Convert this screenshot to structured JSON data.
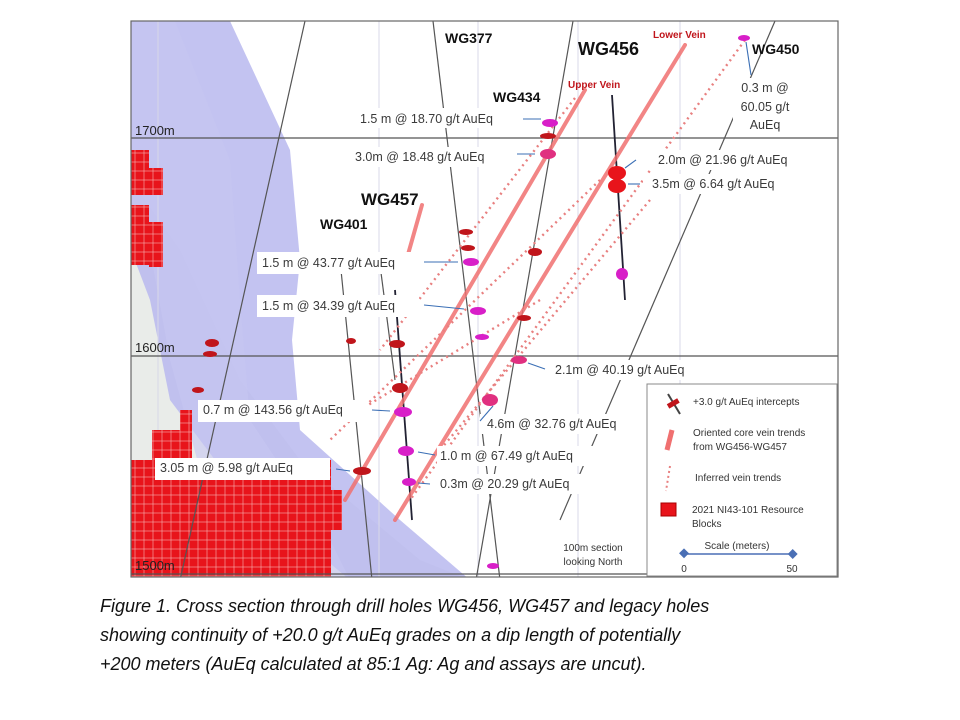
{
  "elevations": [
    "1700m",
    "1600m",
    "1500m"
  ],
  "holes": {
    "wg377": "WG377",
    "wg456": "WG456",
    "wg450": "WG450",
    "wg434": "WG434",
    "wg457": "WG457",
    "wg401": "WG401"
  },
  "veins": {
    "lower": "Lower Vein",
    "upper": "Upper Vein"
  },
  "wg450_intercept": [
    "0.3 m @",
    "60.05 g/t",
    "AuEq"
  ],
  "intercepts": {
    "i1870": "1.5 m @ 18.70 g/t AuEq",
    "i1848": "3.0m @ 18.48 g/t AuEq",
    "i2196": "2.0m @ 21.96 g/t AuEq",
    "i664": "3.5m @ 6.64 g/t AuEq",
    "i4377": "1.5 m @ 43.77 g/t AuEq",
    "i3439": "1.5 m @ 34.39 g/t AuEq",
    "i4019": "2.1m @ 40.19 g/t AuEq",
    "i14356": "0.7 m @ 143.56 g/t AuEq",
    "i3276": "4.6m @ 32.76 g/t AuEq",
    "i6749": "1.0 m @ 67.49 g/t AuEq",
    "i598": "3.05 m @ 5.98 g/t AuEq",
    "i2029": "0.3m @ 20.29 g/t AuEq"
  },
  "section_note": [
    "100m section",
    "looking North"
  ],
  "legend": {
    "intercepts": "+3.0 g/t AuEq intercepts",
    "oriented": [
      "Oriented core vein trends",
      "from WG456-WG457"
    ],
    "inferred": "Inferred vein trends",
    "resource": [
      "2021 NI43-101 Resource",
      "Blocks"
    ],
    "scale_title": "Scale (meters)",
    "scale_min": "0",
    "scale_max": "50"
  },
  "caption": [
    "Figure 1. Cross section through drill holes WG456, WG457 and legacy holes",
    "showing continuity of +20.0 g/t AuEq grades on a dip length of potentially",
    "+200 meters (AuEq calculated at 85:1 Ag: Ag and assays are uncut)."
  ],
  "colors": {
    "vein": "#f07070",
    "resource": "#e8141b",
    "intercept_magenta": "#d81fc8",
    "zone": "#b8b8ee"
  }
}
